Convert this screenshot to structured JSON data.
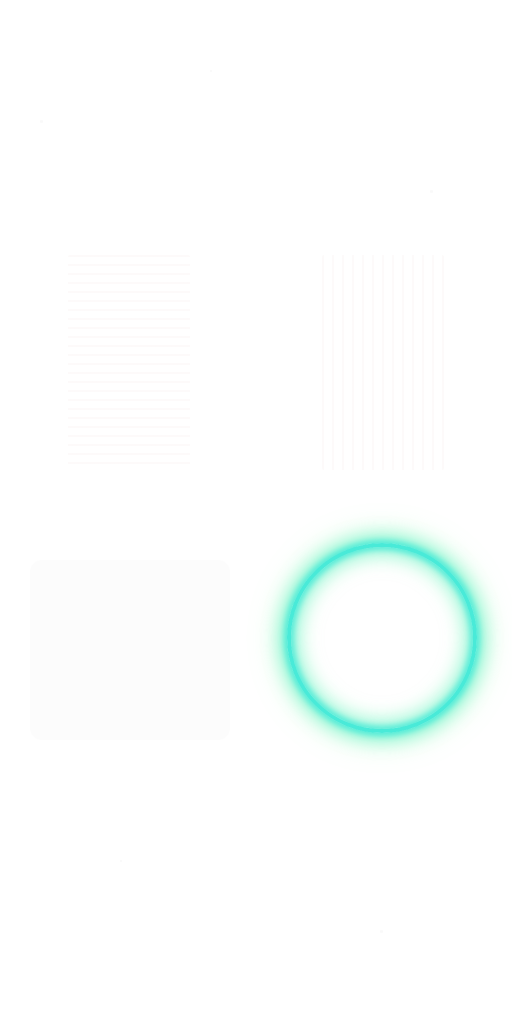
{
  "screen": {
    "background_color": "#ffffff"
  },
  "ring_button": {
    "icon": "glow-ring-icon",
    "ring_color": "#49ead8",
    "glow_color": "#8cfaaa"
  },
  "ghost_panels": {
    "tint_color": "#d9b3a6"
  }
}
